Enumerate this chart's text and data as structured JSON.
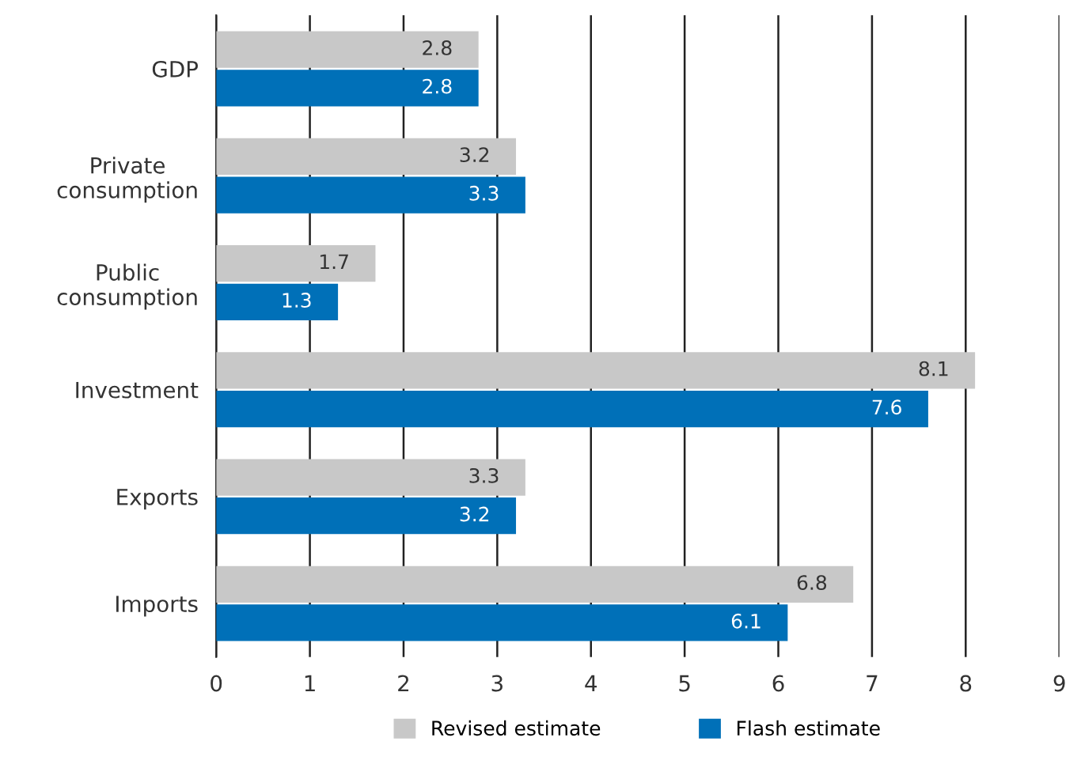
{
  "chart_data": {
    "type": "bar",
    "orientation": "horizontal",
    "categories": [
      "GDP",
      "Private\nconsumption",
      "Public\nconsumption",
      "Investment",
      "Exports",
      "Imports"
    ],
    "series": [
      {
        "name": "Revised estimate",
        "color": "#c8c8c8",
        "values": [
          2.8,
          3.2,
          1.7,
          8.1,
          3.3,
          6.8
        ]
      },
      {
        "name": "Flash estimate",
        "color": "#0070b8",
        "values": [
          2.8,
          3.3,
          1.3,
          7.6,
          3.2,
          6.1
        ]
      }
    ],
    "xlim": [
      0,
      9
    ],
    "xticks": [
      0,
      1,
      2,
      3,
      4,
      5,
      6,
      7,
      8,
      9
    ],
    "grid": "x",
    "legend": "bottom",
    "data_labels": true
  }
}
